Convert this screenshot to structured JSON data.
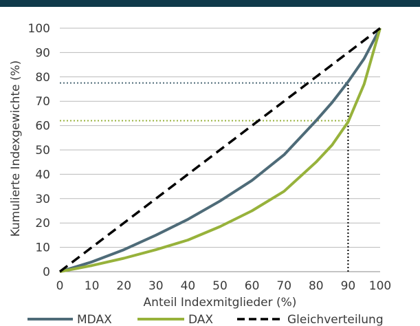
{
  "chart_data": {
    "type": "line",
    "title": "",
    "xlabel": "Anteil Indexmitglieder (%)",
    "ylabel": "Kumulierte Indexgewichte (%)",
    "xlim": [
      0,
      100
    ],
    "ylim": [
      0,
      100
    ],
    "x_ticks": [
      "0",
      "10",
      "20",
      "30",
      "40",
      "50",
      "60",
      "70",
      "80",
      "90",
      "100"
    ],
    "y_ticks": [
      "0",
      "10",
      "20",
      "30",
      "40",
      "50",
      "60",
      "70",
      "80",
      "90",
      "100"
    ],
    "grid": "horizontal",
    "legend_position": "bottom",
    "series": [
      {
        "name": "MDAX",
        "color": "#4e6b78",
        "style": "solid",
        "x": [
          0,
          10,
          20,
          30,
          40,
          50,
          60,
          70,
          80,
          85,
          90,
          95,
          100
        ],
        "y": [
          0,
          4,
          9,
          15,
          21.5,
          29,
          37.5,
          48,
          62,
          69.5,
          78,
          87.5,
          100
        ]
      },
      {
        "name": "DAX",
        "color": "#97b23b",
        "style": "solid",
        "x": [
          0,
          10,
          20,
          30,
          40,
          50,
          60,
          70,
          80,
          85,
          90,
          95,
          100
        ],
        "y": [
          0,
          2.5,
          5.5,
          9,
          13,
          18.5,
          25,
          33,
          45,
          52,
          61.5,
          77,
          100
        ]
      },
      {
        "name": "Gleichverteilung",
        "color": "#000000",
        "style": "dashed",
        "x": [
          0,
          100
        ],
        "y": [
          0,
          100
        ]
      }
    ],
    "reference_lines": [
      {
        "type": "horizontal",
        "y": 77.5,
        "x_to": 90,
        "color": "#4e6b78",
        "style": "dotted"
      },
      {
        "type": "horizontal",
        "y": 62,
        "x_to": 90,
        "color": "#97b23b",
        "style": "dotted"
      },
      {
        "type": "vertical",
        "x": 90,
        "y_to": 78,
        "color": "#000000",
        "style": "dotted"
      }
    ]
  }
}
